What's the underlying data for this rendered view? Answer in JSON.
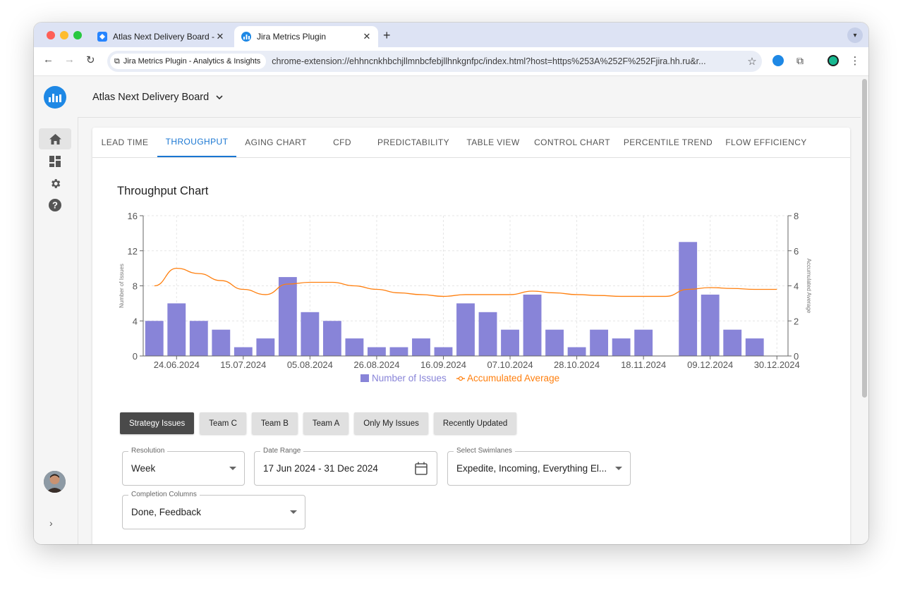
{
  "browser": {
    "tabs": [
      {
        "title": "Atlas Next Delivery Board - K",
        "active": false
      },
      {
        "title": "Jira Metrics Plugin",
        "active": true
      }
    ],
    "site_chip": "Jira Metrics Plugin - Analytics & Insights",
    "url": "chrome-extension://ehhncnkhbchjllmnbcfebjllhnkgnfpc/index.html?host=https%253A%252F%252Fjira.hh.ru&r..."
  },
  "header": {
    "board_name": "Atlas Next Delivery Board"
  },
  "main_tabs": [
    "LEAD TIME",
    "THROUGHPUT",
    "AGING CHART",
    "CFD",
    "PREDICTABILITY",
    "TABLE VIEW",
    "CONTROL CHART",
    "PERCENTILE TREND",
    "FLOW EFFICIENCY"
  ],
  "active_tab": "THROUGHPUT",
  "chart_title": "Throughput Chart",
  "chart_data": {
    "type": "bar",
    "x": [
      "17.06.2024",
      "24.06.2024",
      "01.07.2024",
      "08.07.2024",
      "15.07.2024",
      "22.07.2024",
      "29.07.2024",
      "05.08.2024",
      "12.08.2024",
      "19.08.2024",
      "26.08.2024",
      "02.09.2024",
      "09.09.2024",
      "16.09.2024",
      "23.09.2024",
      "30.09.2024",
      "07.10.2024",
      "14.10.2024",
      "21.10.2024",
      "28.10.2024",
      "04.11.2024",
      "11.11.2024",
      "18.11.2024",
      "25.11.2024",
      "02.12.2024",
      "09.12.2024",
      "16.12.2024",
      "23.12.2024",
      "30.12.2024"
    ],
    "x_tick_labels": [
      "24.06.2024",
      "15.07.2024",
      "05.08.2024",
      "26.08.2024",
      "16.09.2024",
      "07.10.2024",
      "28.10.2024",
      "18.11.2024",
      "09.12.2024",
      "30.12.2024"
    ],
    "series": [
      {
        "name": "Number of Issues",
        "axis": "left",
        "type": "bar",
        "color": "#8884d8",
        "values": [
          4,
          6,
          4,
          3,
          1,
          2,
          9,
          5,
          4,
          2,
          1,
          1,
          2,
          1,
          6,
          5,
          3,
          7,
          3,
          1,
          3,
          2,
          3,
          0,
          13,
          7,
          3,
          2,
          0
        ]
      },
      {
        "name": "Accumulated Average",
        "axis": "right",
        "type": "line",
        "color": "#ff7f0e",
        "values": [
          4.0,
          5.0,
          4.7,
          4.3,
          3.8,
          3.5,
          4.1,
          4.2,
          4.2,
          4.0,
          3.8,
          3.6,
          3.5,
          3.4,
          3.5,
          3.5,
          3.5,
          3.7,
          3.6,
          3.5,
          3.45,
          3.4,
          3.4,
          3.4,
          3.8,
          3.9,
          3.85,
          3.8,
          3.8
        ]
      }
    ],
    "ylabel": "Number of Issues",
    "y2label": "Accumulated Average",
    "ylim": [
      0,
      16
    ],
    "y_ticks": [
      0,
      4,
      8,
      12,
      16
    ],
    "y2lim": [
      0,
      8
    ],
    "y2_ticks": [
      0,
      2,
      4,
      6,
      8
    ],
    "grid": true,
    "legend_position": "bottom"
  },
  "filters": [
    "Strategy Issues",
    "Team C",
    "Team B",
    "Team A",
    "Only My Issues",
    "Recently Updated"
  ],
  "active_filter": "Strategy Issues",
  "fields": {
    "resolution": {
      "label": "Resolution",
      "value": "Week"
    },
    "date_range": {
      "label": "Date Range",
      "value": "17 Jun 2024 - 31 Dec 2024"
    },
    "swimlanes": {
      "label": "Select Swimlanes",
      "value": "Expedite, Incoming, Everything El..."
    },
    "completion": {
      "label": "Completion Columns",
      "value": "Done, Feedback"
    }
  },
  "colors": {
    "accent": "#1976d2",
    "bar": "#8884d8",
    "line": "#ff7f0e",
    "logo": "#1e88e5"
  }
}
